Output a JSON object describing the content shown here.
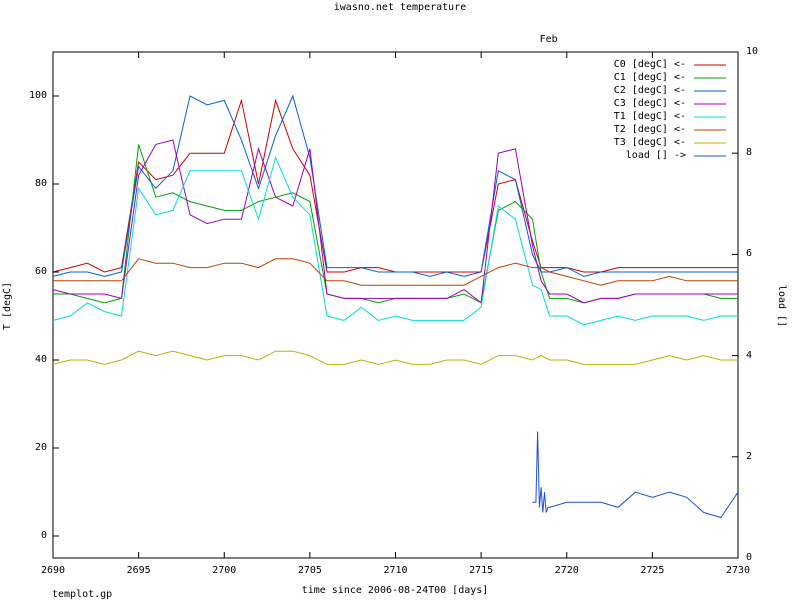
{
  "chart_data": {
    "type": "line",
    "title": "iwasno.net temperature",
    "xlabel": "time since 2006-08-24T00 [days]",
    "ylabel": "T [degC]",
    "y2label": "load []",
    "footer": "templot.gp",
    "top_axis_label": {
      "text": "Feb",
      "x": 2719
    },
    "xlim": [
      2690,
      2730
    ],
    "ylim": [
      -5,
      110
    ],
    "y2lim": [
      0,
      10
    ],
    "xticks": [
      2690,
      2695,
      2700,
      2705,
      2710,
      2715,
      2720,
      2725,
      2730
    ],
    "yticks": [
      0,
      20,
      40,
      60,
      80,
      100
    ],
    "y2ticks": [
      0,
      2,
      4,
      6,
      8,
      10
    ],
    "grid": false,
    "legend_position": "top-right",
    "series": [
      {
        "name": "C0 [degC] <-",
        "color": "#cc0000",
        "axis": "y",
        "x": [
          2690,
          2691,
          2692,
          2693,
          2694,
          2695,
          2696,
          2697,
          2698,
          2699,
          2700,
          2701,
          2702,
          2703,
          2704,
          2705,
          2706,
          2707,
          2708,
          2709,
          2710,
          2711,
          2712,
          2713,
          2714,
          2715,
          2716,
          2717,
          2718,
          2718.5,
          2719,
          2720,
          2721,
          2722,
          2723,
          2724,
          2725,
          2726,
          2727,
          2728,
          2729,
          2730
        ],
        "y": [
          60,
          61,
          62,
          60,
          61,
          85,
          81,
          82,
          87,
          87,
          87,
          99,
          80,
          99,
          88,
          82,
          60,
          60,
          61,
          61,
          60,
          60,
          60,
          60,
          60,
          60,
          80,
          81,
          67,
          61,
          61,
          61,
          60,
          60,
          61,
          61,
          61,
          61,
          61,
          61,
          61,
          61
        ]
      },
      {
        "name": "C1 [degC] <-",
        "color": "#00a000",
        "axis": "y",
        "x": [
          2690,
          2691,
          2692,
          2693,
          2694,
          2695,
          2696,
          2697,
          2698,
          2699,
          2700,
          2701,
          2702,
          2703,
          2704,
          2705,
          2706,
          2707,
          2708,
          2709,
          2710,
          2711,
          2712,
          2713,
          2714,
          2715,
          2716,
          2717,
          2718,
          2718.5,
          2719,
          2720,
          2721,
          2722,
          2723,
          2724,
          2725,
          2726,
          2727,
          2728,
          2729,
          2730
        ],
        "y": [
          55,
          55,
          54,
          53,
          54,
          89,
          77,
          78,
          76,
          75,
          74,
          74,
          76,
          77,
          78,
          76,
          55,
          54,
          54,
          53,
          54,
          54,
          54,
          54,
          55,
          53,
          74,
          76,
          72,
          60,
          54,
          54,
          53,
          54,
          54,
          55,
          55,
          55,
          55,
          55,
          54,
          54
        ]
      },
      {
        "name": "C2 [degC] <-",
        "color": "#0060e0",
        "axis": "y",
        "x": [
          2690,
          2691,
          2692,
          2693,
          2694,
          2695,
          2696,
          2697,
          2698,
          2699,
          2700,
          2701,
          2702,
          2703,
          2704,
          2705,
          2706,
          2707,
          2708,
          2709,
          2710,
          2711,
          2712,
          2713,
          2714,
          2715,
          2716,
          2717,
          2718,
          2718.5,
          2719,
          2720,
          2721,
          2722,
          2723,
          2724,
          2725,
          2726,
          2727,
          2728,
          2729,
          2730
        ],
        "y": [
          59,
          60,
          60,
          59,
          60,
          84,
          79,
          83,
          100,
          98,
          99,
          90,
          79,
          91,
          100,
          86,
          61,
          61,
          61,
          60,
          60,
          60,
          59,
          60,
          59,
          60,
          83,
          81,
          64,
          60,
          60,
          61,
          59,
          60,
          60,
          60,
          60,
          60,
          60,
          60,
          60,
          60
        ]
      },
      {
        "name": "C3 [degC] <-",
        "color": "#a000c0",
        "axis": "y",
        "x": [
          2690,
          2691,
          2692,
          2693,
          2694,
          2695,
          2696,
          2697,
          2698,
          2699,
          2700,
          2701,
          2702,
          2703,
          2704,
          2705,
          2706,
          2707,
          2708,
          2709,
          2710,
          2711,
          2712,
          2713,
          2714,
          2715,
          2716,
          2717,
          2718,
          2718.5,
          2719,
          2720,
          2721,
          2722,
          2723,
          2724,
          2725,
          2726,
          2727,
          2728,
          2729,
          2730
        ],
        "y": [
          56,
          55,
          55,
          55,
          54,
          82,
          89,
          90,
          73,
          71,
          72,
          72,
          88,
          77,
          75,
          88,
          55,
          54,
          54,
          54,
          54,
          54,
          54,
          54,
          56,
          53,
          87,
          88,
          66,
          58,
          55,
          55,
          53,
          54,
          54,
          55,
          55,
          55,
          55,
          55,
          55,
          55
        ]
      },
      {
        "name": "T1 [degC] <-",
        "color": "#00dddd",
        "axis": "y",
        "x": [
          2690,
          2691,
          2692,
          2693,
          2694,
          2695,
          2696,
          2697,
          2698,
          2699,
          2700,
          2701,
          2702,
          2703,
          2704,
          2705,
          2706,
          2707,
          2708,
          2709,
          2710,
          2711,
          2712,
          2713,
          2714,
          2715,
          2716,
          2717,
          2718,
          2718.5,
          2719,
          2720,
          2721,
          2722,
          2723,
          2724,
          2725,
          2726,
          2727,
          2728,
          2729,
          2730
        ],
        "y": [
          49,
          50,
          53,
          51,
          50,
          79,
          73,
          74,
          83,
          83,
          83,
          83,
          72,
          86,
          77,
          73,
          50,
          49,
          52,
          49,
          50,
          49,
          49,
          49,
          49,
          52,
          75,
          72,
          57,
          56,
          50,
          50,
          48,
          49,
          50,
          49,
          50,
          50,
          50,
          49,
          50,
          50
        ]
      },
      {
        "name": "T2 [degC] <-",
        "color": "#c04000",
        "axis": "y",
        "x": [
          2690,
          2691,
          2692,
          2693,
          2694,
          2695,
          2696,
          2697,
          2698,
          2699,
          2700,
          2701,
          2702,
          2703,
          2704,
          2705,
          2706,
          2707,
          2708,
          2709,
          2710,
          2711,
          2712,
          2713,
          2714,
          2715,
          2716,
          2717,
          2718,
          2718.5,
          2719,
          2720,
          2721,
          2722,
          2723,
          2724,
          2725,
          2726,
          2727,
          2728,
          2729,
          2730
        ],
        "y": [
          58,
          58,
          58,
          58,
          58,
          63,
          62,
          62,
          61,
          61,
          62,
          62,
          61,
          63,
          63,
          62,
          58,
          58,
          57,
          57,
          57,
          57,
          57,
          57,
          57,
          59,
          61,
          62,
          61,
          61,
          60,
          59,
          58,
          57,
          58,
          58,
          58,
          59,
          58,
          58,
          58,
          58
        ]
      },
      {
        "name": "T3 [degC] <-",
        "color": "#c0b000",
        "axis": "y",
        "x": [
          2690,
          2691,
          2692,
          2693,
          2694,
          2695,
          2696,
          2697,
          2698,
          2699,
          2700,
          2701,
          2702,
          2703,
          2704,
          2705,
          2706,
          2707,
          2708,
          2709,
          2710,
          2711,
          2712,
          2713,
          2714,
          2715,
          2716,
          2717,
          2718,
          2718.5,
          2719,
          2720,
          2721,
          2722,
          2723,
          2724,
          2725,
          2726,
          2727,
          2728,
          2729,
          2730
        ],
        "y": [
          39,
          40,
          40,
          39,
          40,
          42,
          41,
          42,
          41,
          40,
          41,
          41,
          40,
          42,
          42,
          41,
          39,
          39,
          40,
          39,
          40,
          39,
          39,
          40,
          40,
          39,
          41,
          41,
          40,
          41,
          40,
          40,
          39,
          39,
          39,
          39,
          40,
          41,
          40,
          41,
          40,
          40
        ]
      },
      {
        "name": "load [] ->",
        "color": "#2050d0",
        "axis": "y2",
        "x": [
          2718,
          2718.2,
          2718.3,
          2718.4,
          2718.5,
          2718.6,
          2718.7,
          2718.8,
          2718.9,
          2719,
          2720,
          2721,
          2722,
          2723,
          2724,
          2725,
          2726,
          2727,
          2728,
          2729,
          2730
        ],
        "y": [
          1.1,
          1.1,
          2.5,
          1.0,
          1.4,
          0.9,
          1.3,
          0.9,
          1.0,
          1.0,
          1.1,
          1.1,
          1.1,
          1.0,
          1.3,
          1.2,
          1.3,
          1.2,
          0.9,
          0.8,
          1.3
        ]
      }
    ]
  }
}
